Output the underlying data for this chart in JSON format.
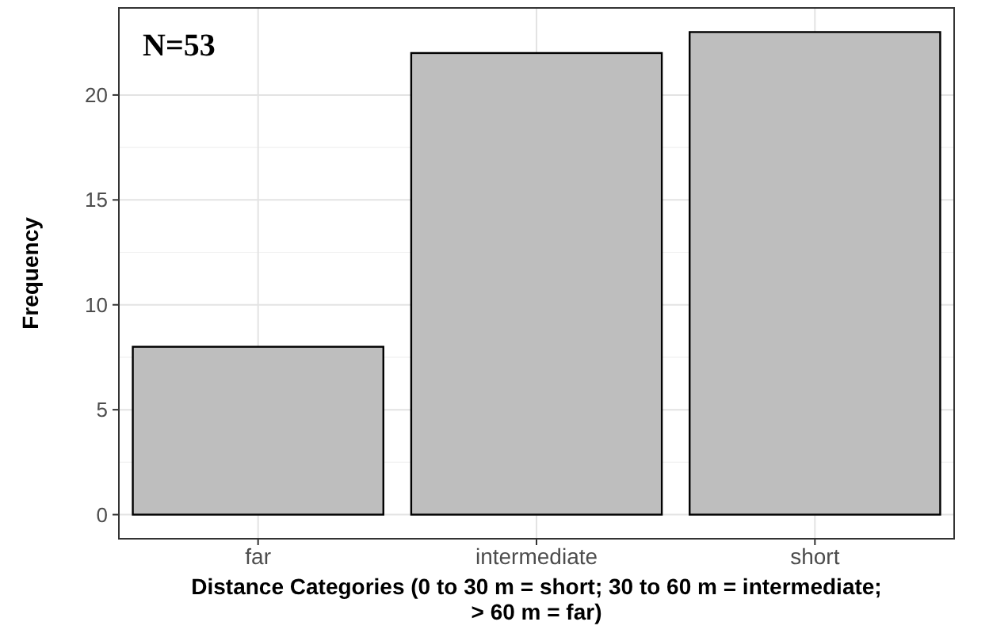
{
  "chart_data": {
    "type": "bar",
    "categories": [
      "far",
      "intermediate",
      "short"
    ],
    "values": [
      8,
      22,
      23
    ],
    "color": "#bebebe",
    "xlabel": "Distance Categories (0 to 30 m = short; 30 to 60 m = intermediate; > 60 m = far)",
    "ylabel": "Frequency",
    "ylim": [
      -1.15,
      24.15
    ],
    "yticks": [
      0,
      5,
      10,
      15,
      20
    ],
    "grid": true,
    "annotations": [
      "N=53"
    ]
  }
}
